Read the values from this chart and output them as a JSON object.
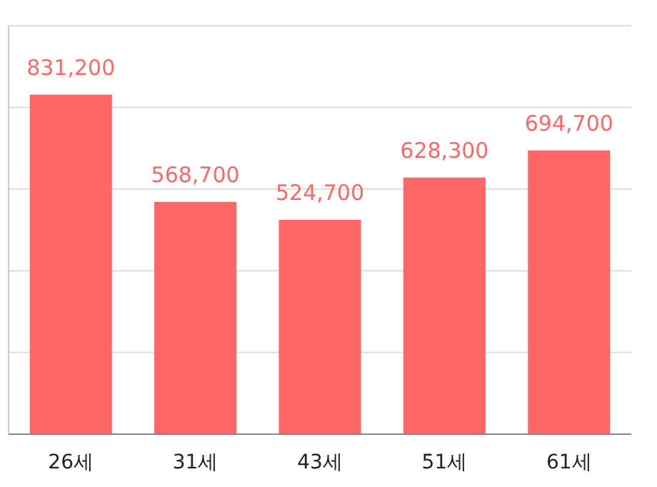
{
  "chart_data": {
    "type": "bar",
    "categories": [
      "26세",
      "31세",
      "43세",
      "51세",
      "61세"
    ],
    "values": [
      831200,
      568700,
      524700,
      628300,
      694700
    ],
    "value_labels": [
      "831,200",
      "568,700",
      "524,700",
      "628,300",
      "694,700"
    ],
    "color": "#ff6666",
    "ylim": [
      0,
      1000000
    ],
    "yticks": [
      {
        "value": 0,
        "label": null
      },
      {
        "value": 200000,
        "label": null
      },
      {
        "value": 400000,
        "label": null
      },
      {
        "value": 600000,
        "label": null
      },
      {
        "value": 800000,
        "label": null
      },
      {
        "value": 1000000,
        "label": null
      }
    ],
    "tick_labels": "x",
    "grid": "y"
  }
}
